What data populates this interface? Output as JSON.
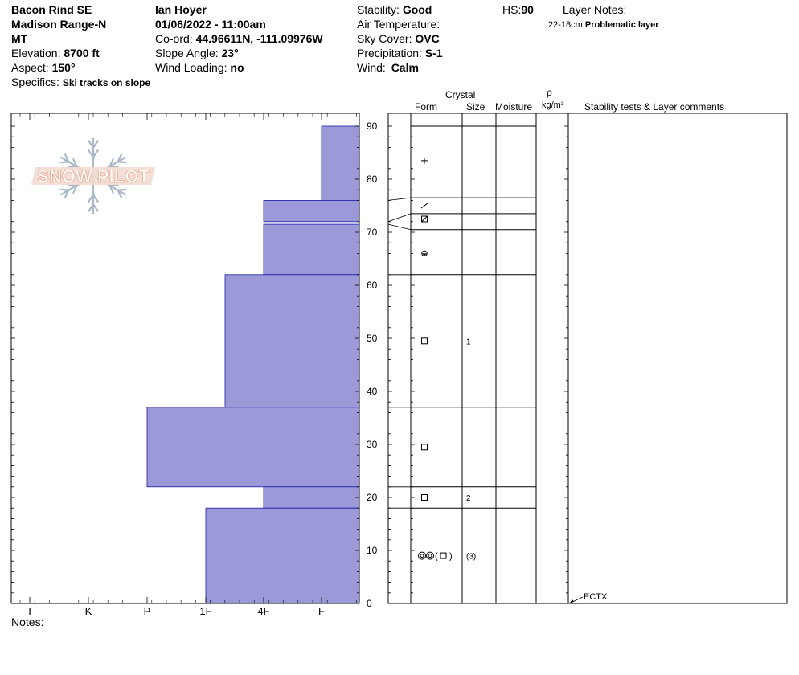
{
  "header": {
    "location": "Bacon Rind SE",
    "range": "Madison Range-N",
    "state": "MT",
    "elevation_label": "Elevation:",
    "elevation_value": "8700 ft",
    "aspect_label": "Aspect:",
    "aspect_value": "150°",
    "specifics_label": "Specifics:",
    "specifics_value": "Ski tracks on slope",
    "observer": "Ian Hoyer",
    "datetime": "01/06/2022 - 11:00am",
    "coord_label": "Co-ord:",
    "coord_value": "44.96611N, -111.09976W",
    "slope_label": "Slope Angle:",
    "slope_value": "23°",
    "wind_loading_label": "Wind Loading:",
    "wind_loading_value": "no",
    "stability_label": "Stability:",
    "stability_value": "Good",
    "air_temp_label": "Air Temperature:",
    "sky_label": "Sky Cover:",
    "sky_value": "OVC",
    "precip_label": "Precipitation:",
    "precip_value": "S-1",
    "wind_label": "Wind:",
    "wind_value": "Calm",
    "hs_label": "HS:",
    "hs_value": "90",
    "layer_notes_label": "Layer Notes:",
    "layer_note_range": "22-18cm:",
    "layer_note_text": "Problematic layer"
  },
  "table_headers": {
    "crystal": "Crystal",
    "form": "Form",
    "size": "Size",
    "moisture": "Moisture",
    "rho": "ρ",
    "density_unit": "kg/m³",
    "comments": "Stability tests & Layer comments"
  },
  "notes_label": "Notes:",
  "logo_text": "SNOW PILOT",
  "chart_data": {
    "type": "bar",
    "orientation": "horizontal",
    "xlabel": "",
    "ylabel": "",
    "hardness_scale": [
      "I",
      "K",
      "P",
      "1F",
      "4F",
      "F"
    ],
    "ylim": [
      0,
      90
    ],
    "y_ticks": [
      0,
      10,
      20,
      30,
      40,
      50,
      60,
      70,
      80,
      90
    ],
    "layers": [
      {
        "top": 90,
        "bottom": 76,
        "hardness": "F"
      },
      {
        "top": 76,
        "bottom": 72,
        "hardness": "4F"
      },
      {
        "top": 71.5,
        "bottom": 62,
        "hardness": "4F"
      },
      {
        "top": 62,
        "bottom": 37,
        "hardness": "1F+"
      },
      {
        "top": 37,
        "bottom": 22,
        "hardness": "P"
      },
      {
        "top": 22,
        "bottom": 18,
        "hardness": "4F"
      },
      {
        "top": 18,
        "bottom": 0,
        "hardness": "1F-"
      }
    ],
    "layer_boundaries": [
      90,
      76.5,
      73.5,
      70.5,
      62,
      37,
      22,
      18,
      0
    ],
    "grain_forms": [
      {
        "depth": 83.5,
        "form": "+",
        "size": ""
      },
      {
        "depth": 75,
        "form": "slash",
        "size": ""
      },
      {
        "depth": 72.5,
        "form": "hatched-square",
        "size": ""
      },
      {
        "depth": 66,
        "form": "rounded-cup",
        "size": ""
      },
      {
        "depth": 49.5,
        "form": "square",
        "size": "1"
      },
      {
        "depth": 29.5,
        "form": "square",
        "size": ""
      },
      {
        "depth": 20,
        "form": "square",
        "size": "2"
      },
      {
        "depth": 9,
        "form": "double-circle-square",
        "size": "(3)"
      }
    ],
    "stability_tests": [
      {
        "depth": 0,
        "label": "ECTX"
      }
    ],
    "colors": {
      "bar": "#9b99d8",
      "bar_edge": "#1a1aa8"
    }
  }
}
